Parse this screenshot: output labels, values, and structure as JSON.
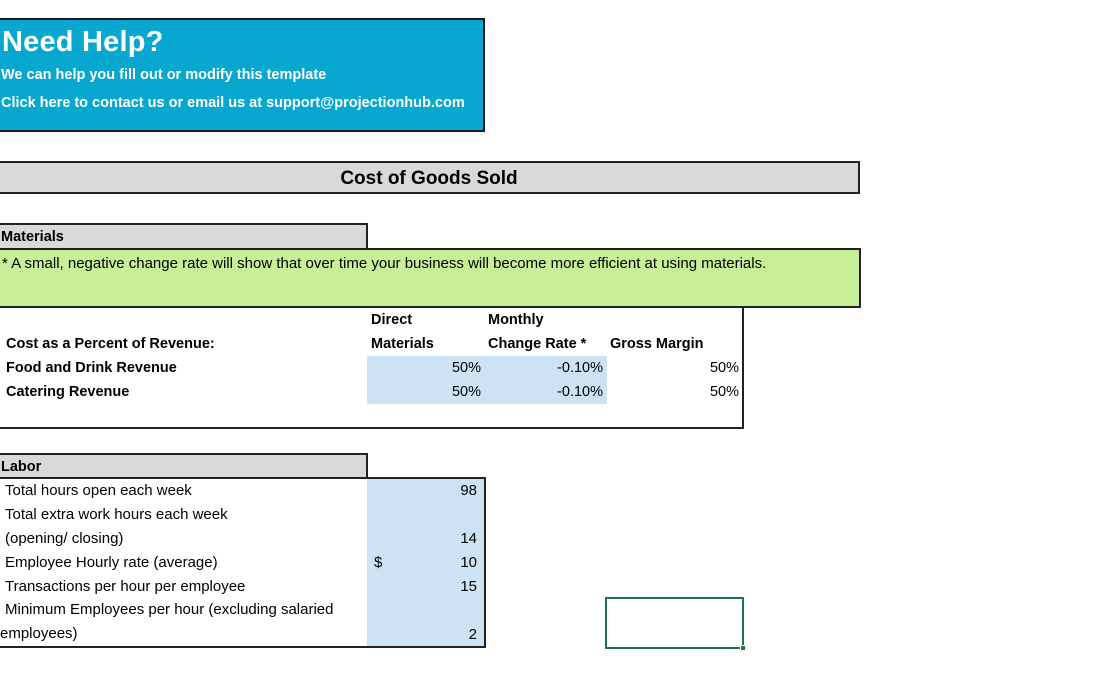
{
  "help": {
    "title": "Need Help?",
    "line1": "We can help you fill out or modify this template",
    "line2": "Click here to contact us or email us at support@projectionhub.com"
  },
  "cogs": {
    "title": "Cost of Goods Sold"
  },
  "materials": {
    "header": "Materials",
    "note": "* A small, negative change rate will show that over time your business will become more efficient at using materials.",
    "col_direct_1": "Direct",
    "col_direct_2": "Materials",
    "col_monthly_1": "Monthly",
    "col_monthly_2": "Change Rate *",
    "col_gross": "Gross Margin",
    "row_label_header": "Cost as a Percent of Revenue:",
    "rows": [
      {
        "label": "Food and Drink Revenue",
        "direct": "50%",
        "change": "-0.10%",
        "gross": "50%"
      },
      {
        "label": "Catering Revenue",
        "direct": "50%",
        "change": "-0.10%",
        "gross": "50%"
      }
    ]
  },
  "labor": {
    "header": "Labor",
    "rows": [
      {
        "label": "Total hours open each week",
        "value": "98"
      },
      {
        "label": "Total extra work hours each week",
        "value": ""
      },
      {
        "label": "(opening/ closing)",
        "value": "14"
      },
      {
        "label": "Employee Hourly rate (average)",
        "currency": "$",
        "value": "10"
      },
      {
        "label": "Transactions per hour per employee",
        "value": "15"
      },
      {
        "label": "Minimum Employees per hour (excluding salaried",
        "value": ""
      },
      {
        "label": "employees)",
        "value": "2"
      }
    ]
  },
  "colors": {
    "help_bg": "#07a7cf",
    "header_gray": "#d9d9d9",
    "note_green": "#c6ef97",
    "input_blue": "#cde2f2",
    "selection_green": "#217346"
  }
}
